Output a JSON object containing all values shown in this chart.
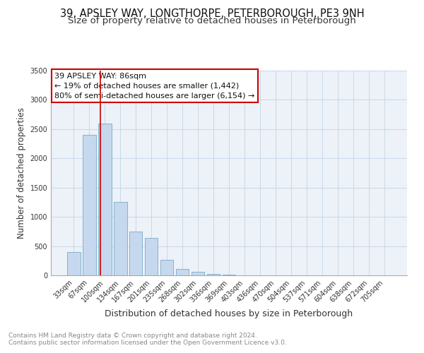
{
  "title": "39, APSLEY WAY, LONGTHORPE, PETERBOROUGH, PE3 9NH",
  "subtitle": "Size of property relative to detached houses in Peterborough",
  "xlabel": "Distribution of detached houses by size in Peterborough",
  "ylabel": "Number of detached properties",
  "categories": [
    "33sqm",
    "67sqm",
    "100sqm",
    "134sqm",
    "167sqm",
    "201sqm",
    "235sqm",
    "268sqm",
    "302sqm",
    "336sqm",
    "369sqm",
    "403sqm",
    "436sqm",
    "470sqm",
    "504sqm",
    "537sqm",
    "571sqm",
    "604sqm",
    "638sqm",
    "672sqm",
    "705sqm"
  ],
  "bar_values": [
    400,
    2400,
    2600,
    1250,
    750,
    640,
    260,
    110,
    55,
    25,
    10,
    5,
    0,
    0,
    0,
    0,
    0,
    0,
    0,
    0,
    0
  ],
  "bar_color": "#c5d8ed",
  "bar_edge_color": "#7aaac8",
  "vline_x": 1.72,
  "vline_color": "#cc0000",
  "annotation_title": "39 APSLEY WAY: 86sqm",
  "annotation_line1": "← 19% of detached houses are smaller (1,442)",
  "annotation_line2": "80% of semi-detached houses are larger (6,154) →",
  "annotation_box_color": "#ffffff",
  "annotation_box_edge": "#cc0000",
  "ylim": [
    0,
    3500
  ],
  "yticks": [
    0,
    500,
    1000,
    1500,
    2000,
    2500,
    3000,
    3500
  ],
  "grid_color": "#c8d8e8",
  "background_color": "#edf2f8",
  "footer_line1": "Contains HM Land Registry data © Crown copyright and database right 2024.",
  "footer_line2": "Contains public sector information licensed under the Open Government Licence v3.0.",
  "title_fontsize": 10.5,
  "subtitle_fontsize": 9.5,
  "xlabel_fontsize": 9,
  "ylabel_fontsize": 8.5,
  "tick_fontsize": 7,
  "annotation_fontsize": 8,
  "footer_fontsize": 6.5
}
